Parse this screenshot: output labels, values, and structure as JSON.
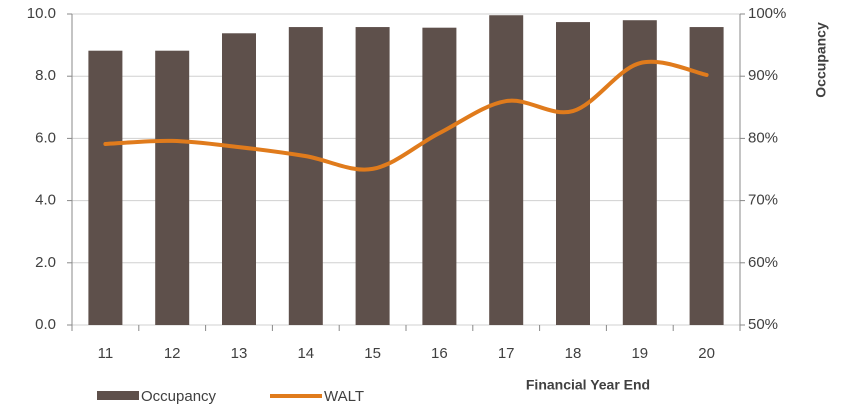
{
  "chart_data": {
    "type": "bar_line",
    "categories": [
      "11",
      "12",
      "13",
      "14",
      "15",
      "16",
      "17",
      "18",
      "19",
      "20"
    ],
    "series": [
      {
        "name": "Occupancy",
        "type": "bar",
        "axis": "y2",
        "color": "#5e504b",
        "values": [
          94.1,
          94.1,
          96.9,
          97.9,
          97.9,
          97.8,
          99.8,
          98.7,
          99.0,
          97.9
        ]
      },
      {
        "name": "WALT",
        "type": "line",
        "axis": "y",
        "color": "#e07b1c",
        "values": [
          5.82,
          5.92,
          5.72,
          5.43,
          5.02,
          6.17,
          7.2,
          6.88,
          8.42,
          8.04
        ]
      }
    ],
    "ylim": [
      0,
      10
    ],
    "yticks": [
      {
        "value": 0,
        "label": "0.0"
      },
      {
        "value": 2,
        "label": "2.0"
      },
      {
        "value": 4,
        "label": "4.0"
      },
      {
        "value": 6,
        "label": "6.0"
      },
      {
        "value": 8,
        "label": "8.0"
      },
      {
        "value": 10,
        "label": "10.0"
      }
    ],
    "y2lim": [
      50,
      100
    ],
    "y2ticks": [
      {
        "value": 50,
        "label": "50%"
      },
      {
        "value": 60,
        "label": "60%"
      },
      {
        "value": 70,
        "label": "70%"
      },
      {
        "value": 80,
        "label": "80%"
      },
      {
        "value": 90,
        "label": "90%"
      },
      {
        "value": 100,
        "label": "100%"
      }
    ],
    "y2label": "Occupancy",
    "xlabel": "Financial Year End",
    "grid": true,
    "legend": "bottom"
  }
}
